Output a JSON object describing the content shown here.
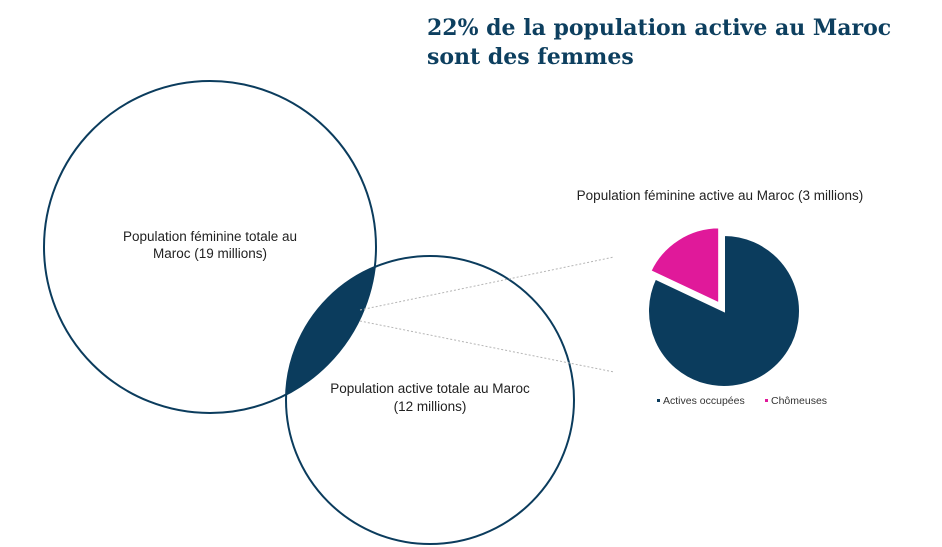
{
  "title": "22% de la population active au Maroc sont des femmes",
  "venn": {
    "circle_a_label_1": "Population féminine totale au",
    "circle_a_label_2": "Maroc (19 millions)",
    "circle_b_label_1": "Population active totale au Maroc",
    "circle_b_label_2": "(12 millions)"
  },
  "colors": {
    "navy": "#0b3c5d",
    "magenta": "#e0199a",
    "title": "#0d3f5f"
  },
  "chart_data": [
    {
      "type": "venn",
      "sets": [
        {
          "label": "Population féminine totale au Maroc (19 millions)",
          "value": 19
        },
        {
          "label": "Population active totale au Maroc (12 millions)",
          "value": 12
        }
      ],
      "intersection": {
        "value": 3
      }
    },
    {
      "type": "pie",
      "title": "Population féminine active au Maroc (3 millions)",
      "categories": [
        "Actives occupées",
        "Chômeuses"
      ],
      "values": [
        82,
        18
      ],
      "colors": [
        "#0b3c5d",
        "#e0199a"
      ],
      "exploded": [
        "Chômeuses"
      ],
      "legend": "bottom"
    }
  ]
}
